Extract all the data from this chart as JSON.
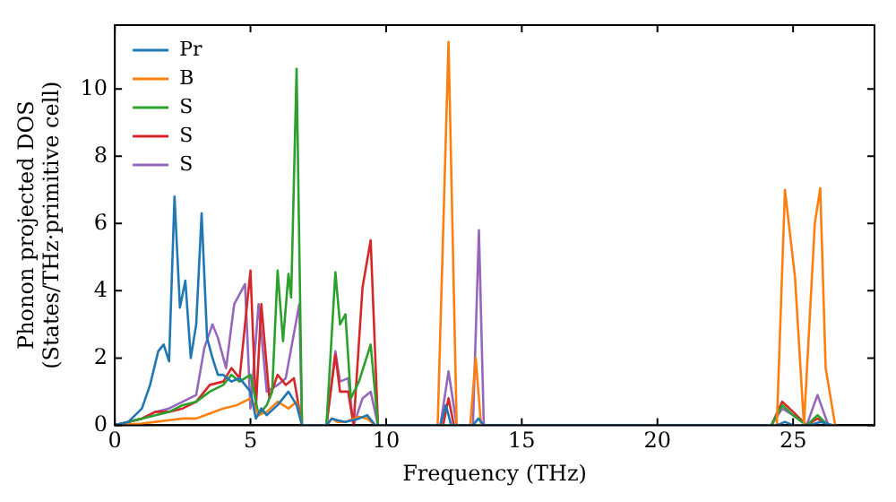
{
  "chart_data": {
    "type": "line",
    "xlabel": "Frequency (THz)",
    "ylabel": "Phonon projected DOS\n(States/THz·primitive cell)",
    "xlim": [
      0,
      28
    ],
    "ylim": [
      0,
      11.9
    ],
    "xticks": [
      0,
      5,
      10,
      15,
      20,
      25
    ],
    "yticks": [
      0,
      2,
      4,
      6,
      8,
      10
    ],
    "grid": false,
    "legend": "top left",
    "marker": "none",
    "line_style": "solid",
    "series": [
      {
        "name": "Pr",
        "color": "#1f77b4",
        "x": [
          0,
          0.5,
          1,
          1.3,
          1.6,
          1.8,
          2.0,
          2.2,
          2.4,
          2.6,
          2.8,
          3.0,
          3.2,
          3.4,
          3.6,
          3.8,
          4.0,
          4.3,
          4.6,
          5.0,
          5.2,
          5.4,
          5.6,
          6.0,
          6.4,
          6.7,
          6.9,
          7.8,
          8.0,
          8.2,
          8.5,
          9.0,
          9.3,
          9.6,
          12,
          12.2,
          12.4,
          13.2,
          13.4,
          13.6,
          24.4,
          24.7,
          25.0,
          25.6,
          26.0,
          26.5
        ],
        "values": [
          0,
          0.1,
          0.5,
          1.2,
          2.2,
          2.4,
          1.9,
          6.8,
          3.5,
          4.3,
          2.0,
          3.0,
          6.3,
          2.6,
          2.0,
          1.5,
          1.5,
          1.3,
          1.4,
          1.0,
          0.2,
          0.5,
          0.3,
          0.6,
          1.0,
          0.6,
          0,
          0,
          0.2,
          0.15,
          0.1,
          0.2,
          0.3,
          0,
          0,
          0.6,
          0,
          0,
          0.2,
          0,
          0,
          0.1,
          0,
          0,
          0.1,
          0
        ]
      },
      {
        "name": "B",
        "color": "#ff7f0e",
        "x": [
          0,
          1,
          1.5,
          2,
          2.5,
          3,
          3.5,
          4,
          4.5,
          5,
          5.3,
          5.6,
          6,
          6.4,
          6.7,
          6.9,
          7.8,
          8.0,
          8.2,
          8.5,
          9.0,
          9.3,
          9.6,
          11.9,
          12.3,
          12.6,
          13.1,
          13.3,
          13.5,
          24.4,
          24.7,
          25.07,
          25.4,
          25.8,
          26.0,
          26.2,
          26.55
        ],
        "values": [
          0,
          0.05,
          0.1,
          0.15,
          0.2,
          0.2,
          0.35,
          0.5,
          0.6,
          0.8,
          0.3,
          0.4,
          0.7,
          0.5,
          0.7,
          0,
          0,
          0.2,
          0.1,
          0.1,
          0.25,
          0.2,
          0,
          0,
          11.4,
          0,
          0,
          2.0,
          0,
          0,
          7.0,
          4.4,
          0,
          6.0,
          7.05,
          1.7,
          0
        ]
      },
      {
        "name": "S",
        "color": "#2ca02c",
        "x": [
          0,
          1,
          1.5,
          2,
          2.5,
          3,
          3.5,
          4,
          4.3,
          4.6,
          5,
          5.3,
          5.6,
          5.8,
          6.0,
          6.2,
          6.4,
          6.5,
          6.7,
          6.9,
          7.8,
          8.13,
          8.3,
          8.5,
          8.7,
          9.0,
          9.43,
          9.7,
          24.2,
          24.6,
          25.0,
          25.5,
          25.9,
          26.3
        ],
        "values": [
          0,
          0.2,
          0.3,
          0.4,
          0.6,
          0.7,
          1.0,
          1.2,
          1.5,
          1.3,
          1.5,
          0.3,
          0.6,
          1.0,
          4.6,
          2.5,
          4.5,
          3.8,
          10.6,
          0,
          0,
          4.55,
          3.0,
          3.3,
          0.8,
          1.3,
          2.4,
          0,
          0,
          0.6,
          0.3,
          0,
          0.3,
          0
        ]
      },
      {
        "name": "S",
        "color": "#d62728",
        "x": [
          0,
          1,
          1.5,
          2,
          2.5,
          3,
          3.5,
          4,
          4.3,
          4.6,
          5.0,
          5.2,
          5.4,
          5.7,
          6.0,
          6.3,
          6.6,
          6.9,
          7.8,
          8.13,
          8.3,
          8.6,
          8.8,
          9.13,
          9.43,
          9.7,
          12.1,
          12.3,
          12.5,
          24.2,
          24.6,
          25.0,
          25.5,
          25.9,
          26.3
        ],
        "values": [
          0,
          0.2,
          0.4,
          0.4,
          0.5,
          0.7,
          1.2,
          1.3,
          1.7,
          1.4,
          4.6,
          0.5,
          3.6,
          0.8,
          1.5,
          1.2,
          1.4,
          0,
          0,
          2.1,
          1.0,
          1.0,
          0,
          4.1,
          5.5,
          0,
          0,
          0.8,
          0,
          0,
          0.7,
          0.4,
          0,
          0.2,
          0
        ]
      },
      {
        "name": "S",
        "color": "#9467bd",
        "x": [
          0,
          1,
          1.5,
          2,
          2.5,
          3,
          3.3,
          3.6,
          3.8,
          4.1,
          4.4,
          4.8,
          5.0,
          5.3,
          5.6,
          6.0,
          6.3,
          6.8,
          6.9,
          7.8,
          8.13,
          8.3,
          8.6,
          8.8,
          9.13,
          9.43,
          9.7,
          12.0,
          12.3,
          12.6,
          13.2,
          13.42,
          13.6,
          24.2,
          24.6,
          25.0,
          25.5,
          25.9,
          26.3
        ],
        "values": [
          0,
          0.2,
          0.4,
          0.5,
          0.7,
          0.9,
          2.3,
          3.0,
          2.6,
          1.7,
          3.6,
          4.2,
          0.5,
          3.6,
          1.0,
          1.2,
          1.4,
          3.6,
          0,
          0,
          2.2,
          1.3,
          1.4,
          0,
          0.8,
          1.0,
          0,
          0,
          1.6,
          0,
          0,
          5.8,
          0,
          0,
          0.5,
          0.3,
          0,
          0.9,
          0
        ]
      }
    ]
  }
}
